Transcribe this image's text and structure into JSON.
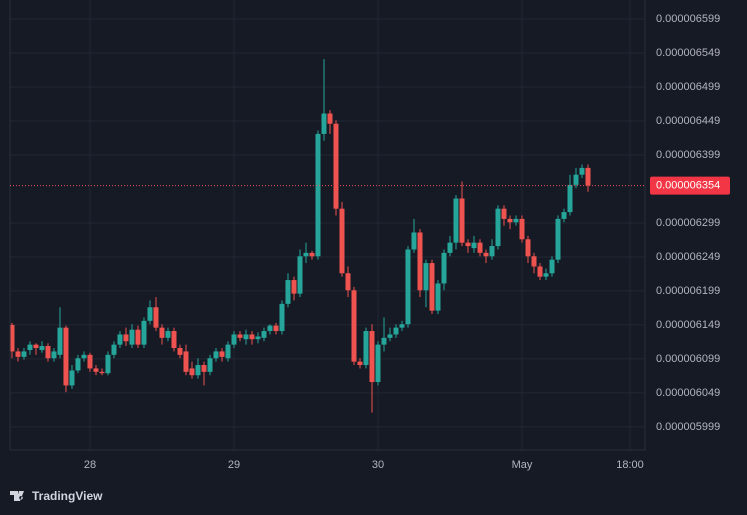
{
  "chart_data": {
    "type": "candlestick",
    "brand": "TradingView",
    "up_color": "#26a69a",
    "down_color": "#ef5350",
    "grid": true,
    "xlim": [
      -0.33,
      105.5
    ],
    "xticks": [
      {
        "value": 13,
        "label": "28"
      },
      {
        "value": 37,
        "label": "29"
      },
      {
        "value": 61,
        "label": "30"
      },
      {
        "value": 85,
        "label": "May"
      },
      {
        "value": 103,
        "label": "18:00"
      }
    ],
    "ylim": [
      5.965e-06,
      6.627e-06
    ],
    "yticks": [
      6.599e-06,
      6.549e-06,
      6.499e-06,
      6.449e-06,
      6.399e-06,
      6.299e-06,
      6.249e-06,
      6.199e-06,
      6.149e-06,
      6.099e-06,
      6.049e-06,
      5.999e-06
    ],
    "last_price": 6.354e-06,
    "open": [
      6.149e-06,
      6.11e-06,
      6.102e-06,
      6.112e-06,
      6.12e-06,
      6.112e-06,
      6.118e-06,
      6.1e-06,
      6.105e-06,
      6.145e-06,
      6.06e-06,
      6.082e-06,
      6.1e-06,
      6.105e-06,
      6.085e-06,
      6.08e-06,
      6.078e-06,
      6.105e-06,
      6.12e-06,
      6.135e-06,
      6.12e-06,
      6.142e-06,
      6.12e-06,
      6.155e-06,
      6.175e-06,
      6.145e-06,
      6.13e-06,
      6.14e-06,
      6.115e-06,
      6.11e-06,
      6.085e-06,
      6.075e-06,
      6.09e-06,
      6.08e-06,
      6.1e-06,
      6.11e-06,
      6.1e-06,
      6.12e-06,
      6.135e-06,
      6.128e-06,
      6.135e-06,
      6.128e-06,
      6.13e-06,
      6.14e-06,
      6.148e-06,
      6.14e-06,
      6.18e-06,
      6.215e-06,
      6.195e-06,
      6.25e-06,
      6.255e-06,
      6.25e-06,
      6.43e-06,
      6.46e-06,
      6.445e-06,
      6.32e-06,
      6.225e-06,
      6.2e-06,
      6.095e-06,
      6.09e-06,
      6.14e-06,
      6.065e-06,
      6.12e-06,
      6.13e-06,
      6.135e-06,
      6.145e-06,
      6.15e-06,
      6.26e-06,
      6.285e-06,
      6.2e-06,
      6.24e-06,
      6.17e-06,
      6.21e-06,
      6.255e-06,
      6.27e-06,
      6.335e-06,
      6.27e-06,
      6.262e-06,
      6.27e-06,
      6.255e-06,
      6.25e-06,
      6.265e-06,
      6.32e-06,
      6.305e-06,
      6.3e-06,
      6.305e-06,
      6.275e-06,
      6.25e-06,
      6.235e-06,
      6.22e-06,
      6.225e-06,
      6.245e-06,
      6.305e-06,
      6.315e-06,
      6.355e-06,
      6.37e-06,
      6.38e-06
    ],
    "high": [
      6.152e-06,
      6.115e-06,
      6.115e-06,
      6.125e-06,
      6.122e-06,
      6.125e-06,
      6.122e-06,
      6.115e-06,
      6.175e-06,
      6.148e-06,
      6.09e-06,
      6.105e-06,
      6.11e-06,
      6.108e-06,
      6.09e-06,
      6.085e-06,
      6.11e-06,
      6.125e-06,
      6.14e-06,
      6.145e-06,
      6.15e-06,
      6.148e-06,
      6.16e-06,
      6.185e-06,
      6.19e-06,
      6.15e-06,
      6.145e-06,
      6.145e-06,
      6.12e-06,
      6.12e-06,
      6.095e-06,
      6.1e-06,
      6.095e-06,
      6.105e-06,
      6.115e-06,
      6.115e-06,
      6.125e-06,
      6.14e-06,
      6.14e-06,
      6.142e-06,
      6.14e-06,
      6.138e-06,
      6.145e-06,
      6.15e-06,
      6.152e-06,
      6.185e-06,
      6.225e-06,
      6.22e-06,
      6.26e-06,
      6.27e-06,
      6.258e-06,
      6.435e-06,
      6.54e-06,
      6.465e-06,
      6.45e-06,
      6.33e-06,
      6.235e-06,
      6.205e-06,
      6.1e-06,
      6.145e-06,
      6.15e-06,
      6.125e-06,
      6.16e-06,
      6.145e-06,
      6.15e-06,
      6.155e-06,
      6.265e-06,
      6.305e-06,
      6.29e-06,
      6.245e-06,
      6.245e-06,
      6.215e-06,
      6.26e-06,
      6.28e-06,
      6.34e-06,
      6.36e-06,
      6.275e-06,
      6.28e-06,
      6.275e-06,
      6.26e-06,
      6.275e-06,
      6.325e-06,
      6.325e-06,
      6.31e-06,
      6.31e-06,
      6.31e-06,
      6.28e-06,
      6.255e-06,
      6.24e-06,
      6.232e-06,
      6.25e-06,
      6.31e-06,
      6.32e-06,
      6.37e-06,
      6.38e-06,
      6.385e-06,
      6.385e-06
    ],
    "low": [
      6.1e-06,
      6.095e-06,
      6.098e-06,
      6.105e-06,
      6.105e-06,
      6.108e-06,
      6.095e-06,
      6.095e-06,
      6.1e-06,
      6.05e-06,
      6.055e-06,
      6.078e-06,
      6.095e-06,
      6.08e-06,
      6.075e-06,
      6.075e-06,
      6.075e-06,
      6.1e-06,
      6.115e-06,
      6.118e-06,
      6.115e-06,
      6.115e-06,
      6.115e-06,
      6.15e-06,
      6.14e-06,
      6.12e-06,
      6.125e-06,
      6.11e-06,
      6.1e-06,
      6.075e-06,
      6.07e-06,
      6.07e-06,
      6.06e-06,
      6.075e-06,
      6.095e-06,
      6.095e-06,
      6.095e-06,
      6.115e-06,
      6.125e-06,
      6.12e-06,
      6.12e-06,
      6.122e-06,
      6.125e-06,
      6.135e-06,
      6.135e-06,
      6.135e-06,
      6.175e-06,
      6.185e-06,
      6.19e-06,
      6.24e-06,
      6.245e-06,
      6.245e-06,
      6.42e-06,
      6.43e-06,
      6.31e-06,
      6.22e-06,
      6.19e-06,
      6.09e-06,
      6.085e-06,
      6.085e-06,
      6.02e-06,
      6.06e-06,
      6.11e-06,
      6.125e-06,
      6.13e-06,
      6.14e-06,
      6.145e-06,
      6.255e-06,
      6.19e-06,
      6.175e-06,
      6.165e-06,
      6.165e-06,
      6.2e-06,
      6.25e-06,
      6.26e-06,
      6.265e-06,
      6.255e-06,
      6.255e-06,
      6.25e-06,
      6.24e-06,
      6.245e-06,
      6.26e-06,
      6.295e-06,
      6.29e-06,
      6.295e-06,
      6.27e-06,
      6.24e-06,
      6.225e-06,
      6.215e-06,
      6.215e-06,
      6.22e-06,
      6.24e-06,
      6.3e-06,
      6.31e-06,
      6.35e-06,
      6.365e-06,
      6.345e-06
    ],
    "close": [
      6.11e-06,
      6.102e-06,
      6.11e-06,
      6.12e-06,
      6.115e-06,
      6.118e-06,
      6.1e-06,
      6.11e-06,
      6.145e-06,
      6.06e-06,
      6.082e-06,
      6.1e-06,
      6.105e-06,
      6.085e-06,
      6.08e-06,
      6.078e-06,
      6.105e-06,
      6.12e-06,
      6.135e-06,
      6.125e-06,
      6.142e-06,
      6.12e-06,
      6.155e-06,
      6.175e-06,
      6.145e-06,
      6.13e-06,
      6.14e-06,
      6.115e-06,
      6.105e-06,
      6.08e-06,
      6.075e-06,
      6.09e-06,
      6.08e-06,
      6.1e-06,
      6.11e-06,
      6.102e-06,
      6.12e-06,
      6.135e-06,
      6.13e-06,
      6.135e-06,
      6.128e-06,
      6.132e-06,
      6.14e-06,
      6.148e-06,
      6.14e-06,
      6.18e-06,
      6.215e-06,
      6.195e-06,
      6.25e-06,
      6.255e-06,
      6.25e-06,
      6.43e-06,
      6.46e-06,
      6.445e-06,
      6.32e-06,
      6.225e-06,
      6.2e-06,
      6.095e-06,
      6.09e-06,
      6.14e-06,
      6.065e-06,
      6.12e-06,
      6.13e-06,
      6.135e-06,
      6.145e-06,
      6.15e-06,
      6.26e-06,
      6.285e-06,
      6.2e-06,
      6.24e-06,
      6.17e-06,
      6.21e-06,
      6.255e-06,
      6.27e-06,
      6.335e-06,
      6.27e-06,
      6.265e-06,
      6.27e-06,
      6.255e-06,
      6.25e-06,
      6.265e-06,
      6.32e-06,
      6.305e-06,
      6.3e-06,
      6.305e-06,
      6.275e-06,
      6.25e-06,
      6.235e-06,
      6.22e-06,
      6.225e-06,
      6.245e-06,
      6.305e-06,
      6.315e-06,
      6.355e-06,
      6.37e-06,
      6.38e-06,
      6.354e-06
    ]
  }
}
